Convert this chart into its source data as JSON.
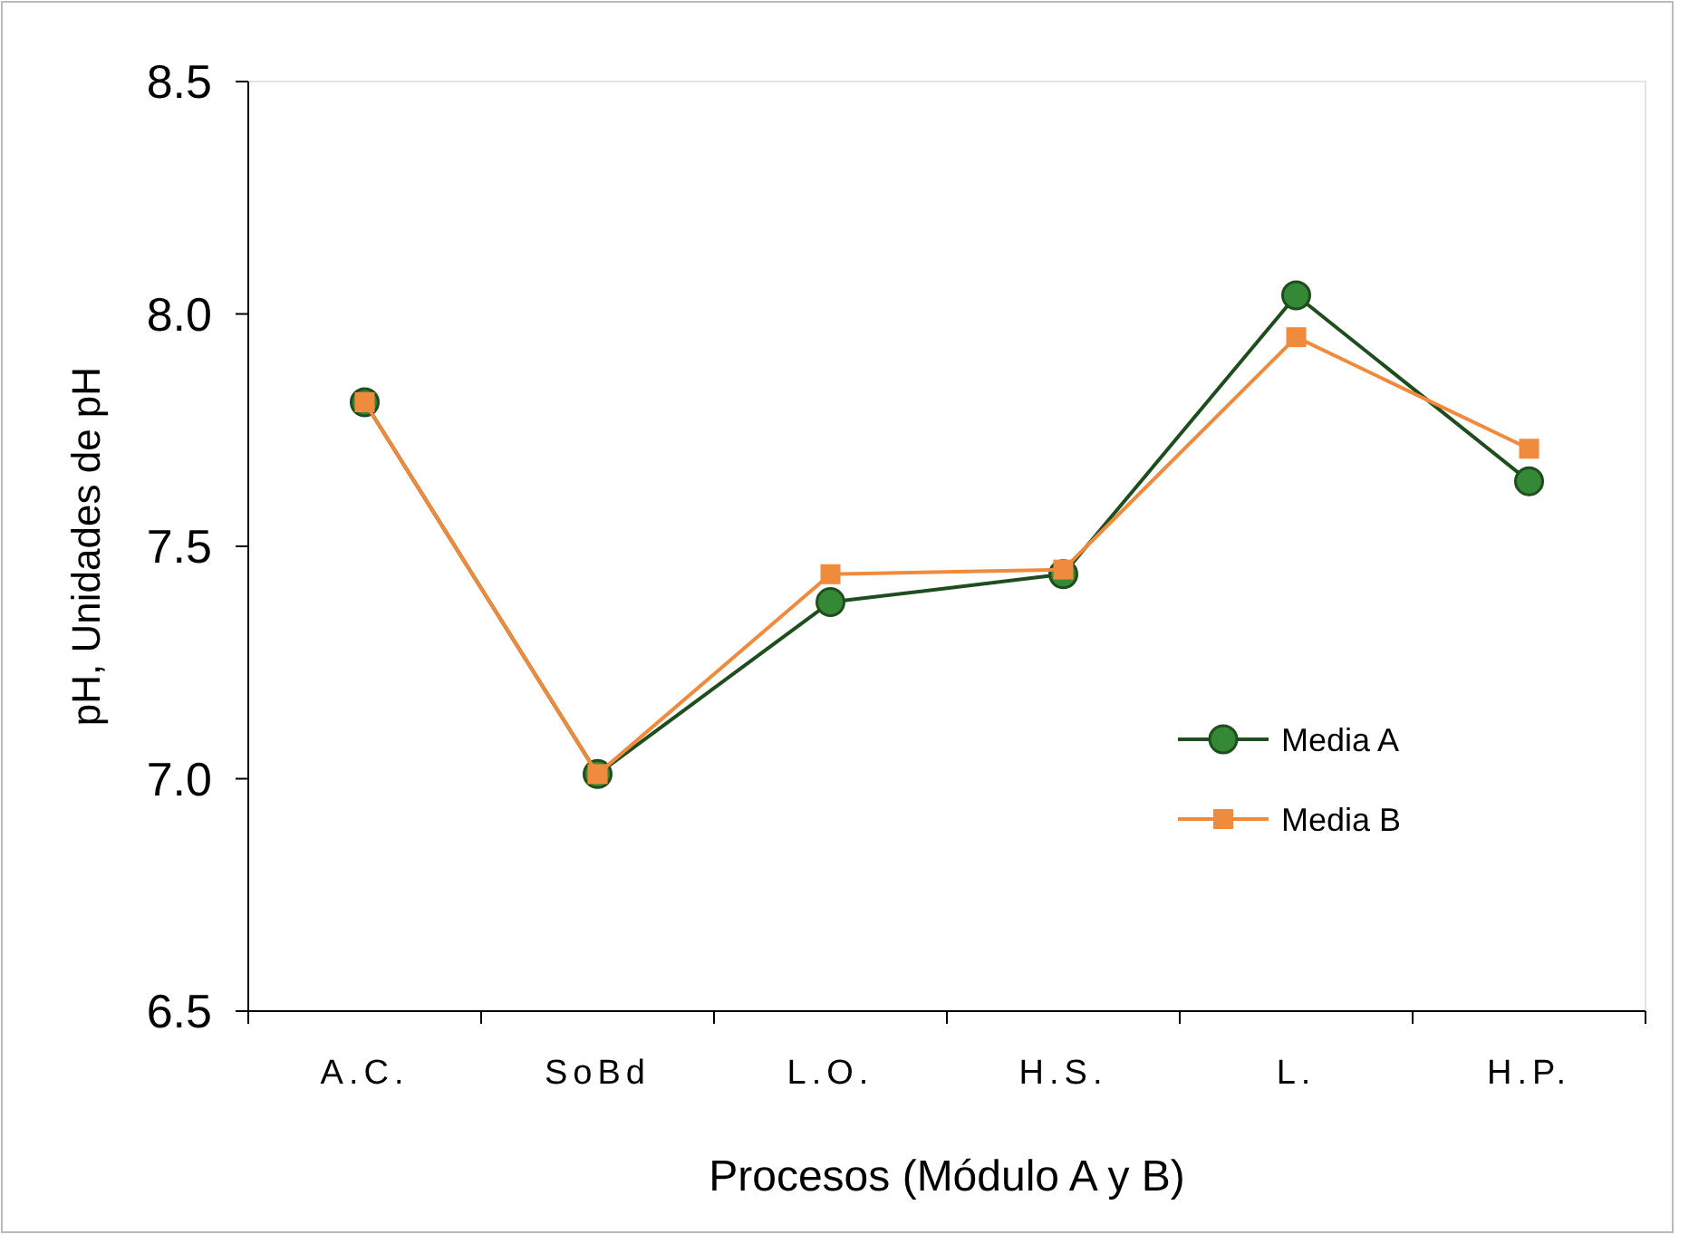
{
  "chart_data": {
    "type": "line",
    "xlabel": "Procesos (Módulo A y B)",
    "ylabel": "pH, Unidades de pH",
    "categories": [
      "A.C.",
      "SoBd",
      "L.O.",
      "H.S.",
      "L.",
      "H.P."
    ],
    "ylim": [
      6.5,
      8.5
    ],
    "yticks": [
      {
        "value": 6.5,
        "label": "6.5"
      },
      {
        "value": 7,
        "label": "7.0"
      },
      {
        "value": 7.5,
        "label": "7.5"
      },
      {
        "value": 8,
        "label": "8.0"
      },
      {
        "value": 8.5,
        "label": "8.5"
      }
    ],
    "grid": false,
    "legend": "right",
    "line_style": "solid",
    "series": [
      {
        "name": "Media A",
        "color": "#1e4d1e",
        "marker": "circle",
        "values": [
          7.81,
          7.01,
          7.38,
          7.44,
          8.04,
          7.64
        ]
      },
      {
        "name": "Media B",
        "color": "#f08a3c",
        "marker": "square",
        "values": [
          7.81,
          7.01,
          7.44,
          7.45,
          7.95,
          7.71
        ]
      }
    ]
  }
}
